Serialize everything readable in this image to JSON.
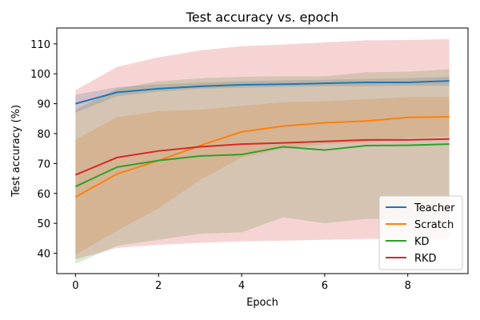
{
  "chart_data": {
    "type": "line",
    "title": "Test accuracy vs. epoch",
    "xlabel": "Epoch",
    "ylabel": "Test accuracy (%)",
    "xlim": [
      -0.45,
      9.45
    ],
    "ylim": [
      33.2,
      115.3
    ],
    "xticks": [
      0,
      2,
      4,
      6,
      8
    ],
    "yticks": [
      40,
      50,
      60,
      70,
      80,
      90,
      100,
      110
    ],
    "grid": false,
    "legend_position": "lower-right",
    "x": [
      0,
      1,
      2,
      3,
      4,
      5,
      6,
      7,
      8,
      9
    ],
    "series": [
      {
        "name": "Teacher",
        "color": "#1f77b4",
        "values": [
          90.0,
          93.8,
          95.0,
          95.8,
          96.3,
          96.5,
          96.8,
          97.1,
          97.1,
          97.6
        ],
        "band_lower": [
          87.0,
          92.5,
          94.0,
          95.0,
          95.3,
          95.6,
          95.8,
          95.8,
          96.0,
          96.0
        ],
        "band_upper": [
          93.0,
          95.5,
          96.5,
          97.0,
          97.5,
          97.8,
          98.0,
          98.3,
          98.5,
          99.0
        ]
      },
      {
        "name": "Scratch",
        "color": "#ff7f0e",
        "values": [
          58.8,
          66.5,
          71.0,
          76.0,
          80.6,
          82.5,
          83.6,
          84.2,
          85.4,
          85.6
        ],
        "band_lower": [
          39.5,
          47.5,
          55.0,
          64.5,
          72.0,
          75.0,
          76.5,
          77.0,
          78.5,
          79.0
        ],
        "band_upper": [
          78.0,
          85.5,
          87.5,
          88.0,
          89.3,
          90.5,
          90.8,
          91.5,
          92.2,
          92.2
        ]
      },
      {
        "name": "KD",
        "color": "#2ca02c",
        "values": [
          62.3,
          68.8,
          71.0,
          72.5,
          73.0,
          75.6,
          74.5,
          76.0,
          76.1,
          76.5
        ],
        "band_lower": [
          36.5,
          42.5,
          44.5,
          46.5,
          47.0,
          52.0,
          50.0,
          51.5,
          51.5,
          52.5
        ],
        "band_upper": [
          88.0,
          95.0,
          97.5,
          98.5,
          99.0,
          99.2,
          99.2,
          100.5,
          100.7,
          101.5
        ]
      },
      {
        "name": "RKD",
        "color": "#d62728",
        "values": [
          66.2,
          72.0,
          74.2,
          75.6,
          76.5,
          76.9,
          77.4,
          77.9,
          77.9,
          78.2
        ],
        "band_lower": [
          38.0,
          41.8,
          42.8,
          43.5,
          44.0,
          44.2,
          44.5,
          44.8,
          44.8,
          45.0
        ],
        "band_upper": [
          94.5,
          102.3,
          105.5,
          107.8,
          109.2,
          109.8,
          110.5,
          111.2,
          111.3,
          111.6
        ]
      }
    ]
  }
}
